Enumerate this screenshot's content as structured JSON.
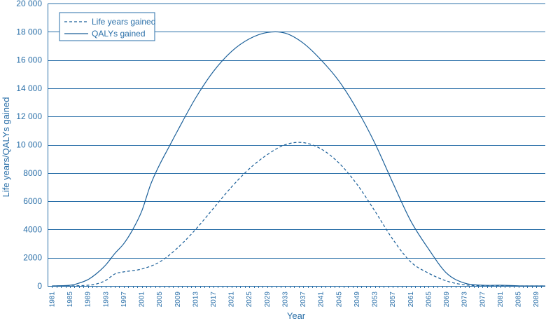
{
  "chart_data": {
    "type": "line",
    "xlabel": "Year",
    "ylabel": "Life years/QALYs gained",
    "ylim": [
      0,
      20000
    ],
    "yticks": [
      0,
      2000,
      4000,
      6000,
      8000,
      10000,
      12000,
      14000,
      16000,
      18000,
      20000
    ],
    "ytick_labels": [
      "0",
      "2000",
      "4000",
      "6000",
      "8000",
      "10 000",
      "12 000",
      "14 000",
      "16 000",
      "18 000",
      "20 000"
    ],
    "xlim": [
      1980,
      2091
    ],
    "xticks": [
      1981,
      1985,
      1989,
      1993,
      1997,
      2001,
      2005,
      2009,
      2013,
      2017,
      2021,
      2025,
      2029,
      2033,
      2037,
      2041,
      2045,
      2049,
      2053,
      2057,
      2061,
      2065,
      2069,
      2073,
      2077,
      2081,
      2085,
      2089
    ],
    "grid": "horizontal",
    "legend": "top-left",
    "color": "#1a5f99",
    "series": [
      {
        "name": "Life years gained",
        "style": "dashed",
        "x": [
          1981,
          1985,
          1989,
          1991,
          1993,
          1995,
          1997,
          2001,
          2005,
          2009,
          2013,
          2017,
          2021,
          2025,
          2029,
          2033,
          2037,
          2041,
          2045,
          2049,
          2053,
          2057,
          2061,
          2065,
          2069,
          2073,
          2077,
          2081,
          2085,
          2089,
          2091
        ],
        "values": [
          0,
          0,
          50,
          150,
          400,
          850,
          1000,
          1200,
          1700,
          2700,
          4000,
          5500,
          7000,
          8300,
          9300,
          10000,
          10150,
          9700,
          8700,
          7200,
          5300,
          3300,
          1700,
          900,
          350,
          80,
          20,
          10,
          0,
          0,
          0
        ]
      },
      {
        "name": "QALYs gained",
        "style": "solid",
        "x": [
          1981,
          1985,
          1987,
          1989,
          1991,
          1993,
          1995,
          1997,
          1999,
          2001,
          2003,
          2005,
          2007,
          2009,
          2013,
          2017,
          2021,
          2025,
          2029,
          2033,
          2037,
          2041,
          2045,
          2049,
          2053,
          2057,
          2061,
          2065,
          2069,
          2073,
          2077,
          2081,
          2085,
          2089,
          2091
        ],
        "values": [
          0,
          50,
          200,
          450,
          900,
          1500,
          2300,
          3000,
          4000,
          5300,
          7200,
          8600,
          9800,
          11000,
          13300,
          15200,
          16600,
          17500,
          17950,
          17900,
          17200,
          16000,
          14500,
          12500,
          10100,
          7300,
          4600,
          2600,
          900,
          200,
          50,
          50,
          10,
          0,
          0
        ]
      }
    ]
  }
}
